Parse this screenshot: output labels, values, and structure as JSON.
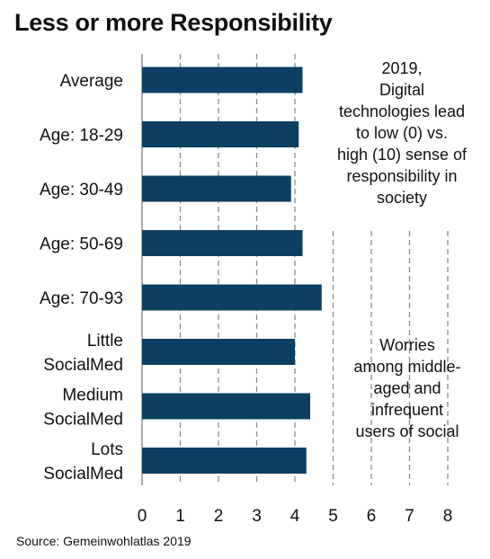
{
  "chart_data": {
    "type": "bar",
    "orientation": "horizontal",
    "title": "Less or more Responsibility",
    "categories": [
      [
        "Average"
      ],
      [
        "Age: 18-29"
      ],
      [
        "Age: 30-49"
      ],
      [
        "Age: 50-69"
      ],
      [
        "Age: 70-93"
      ],
      [
        "Little",
        "SocialMed"
      ],
      [
        "Medium",
        "SocialMed"
      ],
      [
        "Lots",
        "SocialMed"
      ]
    ],
    "values": [
      4.2,
      4.1,
      3.9,
      4.2,
      4.7,
      4.0,
      4.4,
      4.3
    ],
    "xlim": [
      0,
      8
    ],
    "xticks": [
      "0",
      "1",
      "2",
      "3",
      "4",
      "5",
      "6",
      "7",
      "8"
    ],
    "grid": "vertical dashed",
    "bar_color": "#0d3f63",
    "annotations": [
      {
        "lines": [
          "2019,",
          "Digital",
          "technologies lead",
          "to low (0) vs.",
          "high (10) sense of",
          "responsibility in",
          "society"
        ]
      },
      {
        "lines": [
          "Worries",
          "among middle-",
          "aged and",
          "infrequent",
          "users of social"
        ]
      }
    ]
  },
  "source": "Source: Gemeinwohlatlas 2019"
}
